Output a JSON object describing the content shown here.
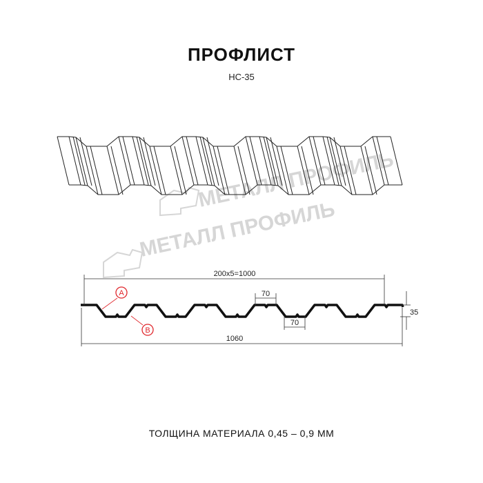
{
  "header": {
    "title": "ПРОФЛИСТ",
    "model": "НС-35"
  },
  "watermark": {
    "text": "МЕТАЛЛ ПРОФИЛЬ"
  },
  "section": {
    "dims": {
      "pitch": "200x5=1000",
      "top_width": "70",
      "bottom_width": "70",
      "height": "35",
      "total_width": "1060"
    },
    "markers": {
      "a": "A",
      "b": "B"
    },
    "marker_color": "#e0262b"
  },
  "footer": {
    "thickness": "ТОЛЩИНА МАТЕРИАЛА 0,45 – 0,9 ММ"
  }
}
